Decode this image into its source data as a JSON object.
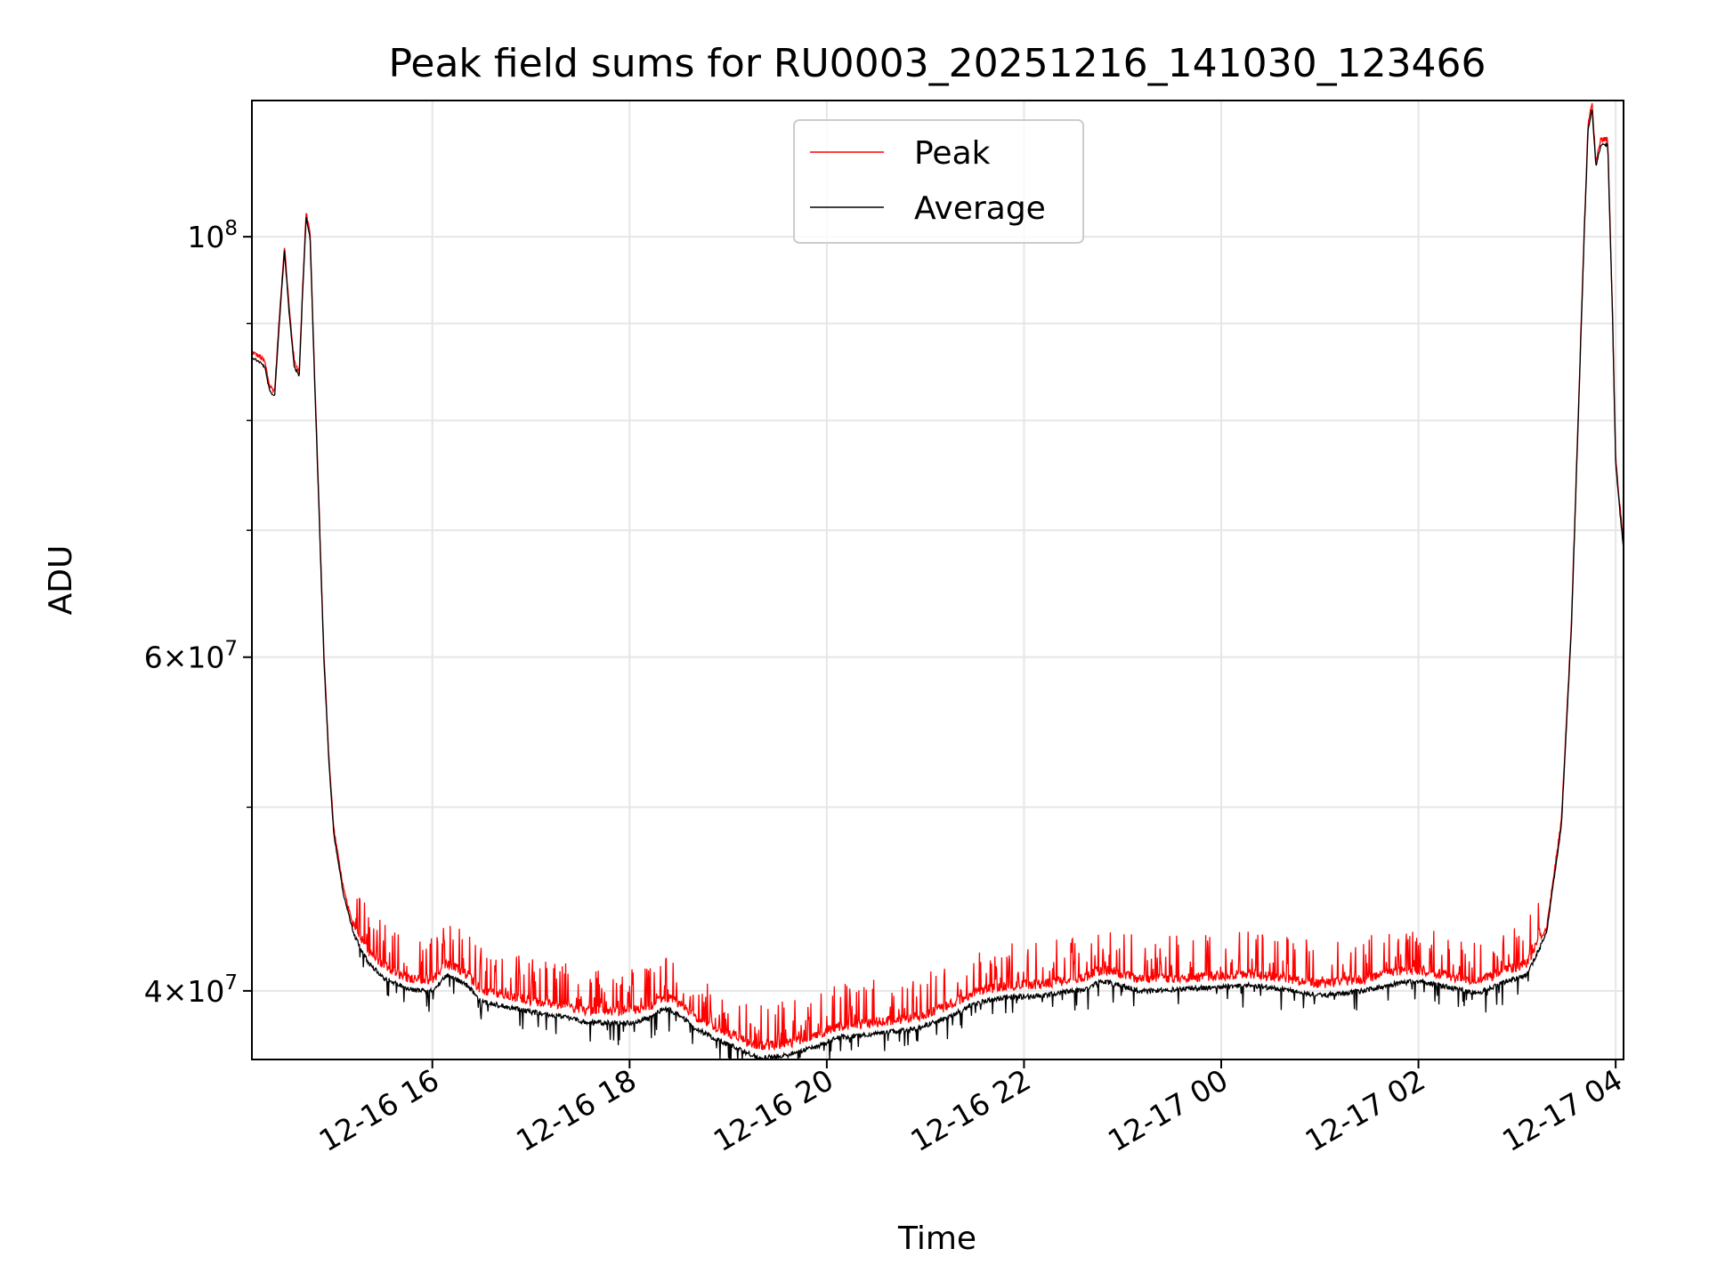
{
  "chart_data": {
    "type": "line",
    "title": "Peak field sums for RU0003_20251216_141030_123466",
    "xlabel": "Time",
    "ylabel": "ADU",
    "yscale": "log",
    "ylim": [
      36800000,
      118000000
    ],
    "xlim_hours": [
      14.17,
      28.08
    ],
    "grid": true,
    "legend_position": "top-center",
    "x_ticks": [
      {
        "hour": 16,
        "label": "12-16 16"
      },
      {
        "hour": 18,
        "label": "12-16 18"
      },
      {
        "hour": 20,
        "label": "12-16 20"
      },
      {
        "hour": 22,
        "label": "12-16 22"
      },
      {
        "hour": 24,
        "label": "12-17 00"
      },
      {
        "hour": 26,
        "label": "12-17 02"
      },
      {
        "hour": 28,
        "label": "12-17 04"
      }
    ],
    "y_ticks": [
      {
        "value": 40000000,
        "base": "4×10",
        "exp": "7"
      },
      {
        "value": 60000000,
        "base": "6×10",
        "exp": "7"
      },
      {
        "value": 100000000,
        "base": "10",
        "exp": "8"
      }
    ],
    "y_minor_grid": [
      50000000,
      70000000,
      80000000,
      90000000
    ],
    "series": [
      {
        "name": "Peak",
        "color": "#ff0000"
      },
      {
        "name": "Average",
        "color": "#000000"
      }
    ],
    "average_profile": [
      [
        14.17,
        86500000
      ],
      [
        14.25,
        86000000
      ],
      [
        14.3,
        85500000
      ],
      [
        14.35,
        83000000
      ],
      [
        14.4,
        82500000
      ],
      [
        14.45,
        90500000
      ],
      [
        14.5,
        98500000
      ],
      [
        14.55,
        91000000
      ],
      [
        14.6,
        85500000
      ],
      [
        14.65,
        84500000
      ],
      [
        14.68,
        92500000
      ],
      [
        14.72,
        102500000
      ],
      [
        14.76,
        100000000
      ],
      [
        14.8,
        86000000
      ],
      [
        14.85,
        72000000
      ],
      [
        14.9,
        60000000
      ],
      [
        14.95,
        53000000
      ],
      [
        15.0,
        48500000
      ],
      [
        15.1,
        45000000
      ],
      [
        15.2,
        43000000
      ],
      [
        15.35,
        41500000
      ],
      [
        15.5,
        40800000
      ],
      [
        15.75,
        40200000
      ],
      [
        16.0,
        40100000
      ],
      [
        16.15,
        40900000
      ],
      [
        16.35,
        40400000
      ],
      [
        16.5,
        39600000
      ],
      [
        16.8,
        39300000
      ],
      [
        17.0,
        39100000
      ],
      [
        17.3,
        38900000
      ],
      [
        17.6,
        38600000
      ],
      [
        18.0,
        38600000
      ],
      [
        18.2,
        38800000
      ],
      [
        18.35,
        39300000
      ],
      [
        18.5,
        39000000
      ],
      [
        18.65,
        38400000
      ],
      [
        18.8,
        38000000
      ],
      [
        19.0,
        37600000
      ],
      [
        19.3,
        37000000
      ],
      [
        19.6,
        37100000
      ],
      [
        19.9,
        37500000
      ],
      [
        20.1,
        37900000
      ],
      [
        20.5,
        38100000
      ],
      [
        20.9,
        38300000
      ],
      [
        21.2,
        38800000
      ],
      [
        21.5,
        39500000
      ],
      [
        21.8,
        39800000
      ],
      [
        22.2,
        39900000
      ],
      [
        22.6,
        40200000
      ],
      [
        22.8,
        40600000
      ],
      [
        23.2,
        40100000
      ],
      [
        23.6,
        40200000
      ],
      [
        24.0,
        40300000
      ],
      [
        24.3,
        40400000
      ],
      [
        24.6,
        40200000
      ],
      [
        25.0,
        39900000
      ],
      [
        25.4,
        40100000
      ],
      [
        25.8,
        40500000
      ],
      [
        26.0,
        40600000
      ],
      [
        26.3,
        40300000
      ],
      [
        26.6,
        40000000
      ],
      [
        26.9,
        40600000
      ],
      [
        27.1,
        40900000
      ],
      [
        27.3,
        43000000
      ],
      [
        27.45,
        49000000
      ],
      [
        27.55,
        62000000
      ],
      [
        27.62,
        80000000
      ],
      [
        27.68,
        100000000
      ],
      [
        27.72,
        114000000
      ],
      [
        27.76,
        117000000
      ],
      [
        27.8,
        109000000
      ],
      [
        27.85,
        112000000
      ],
      [
        27.92,
        112000000
      ],
      [
        27.97,
        90000000
      ],
      [
        28.0,
        76000000
      ],
      [
        28.04,
        72000000
      ],
      [
        28.08,
        68500000
      ]
    ]
  }
}
